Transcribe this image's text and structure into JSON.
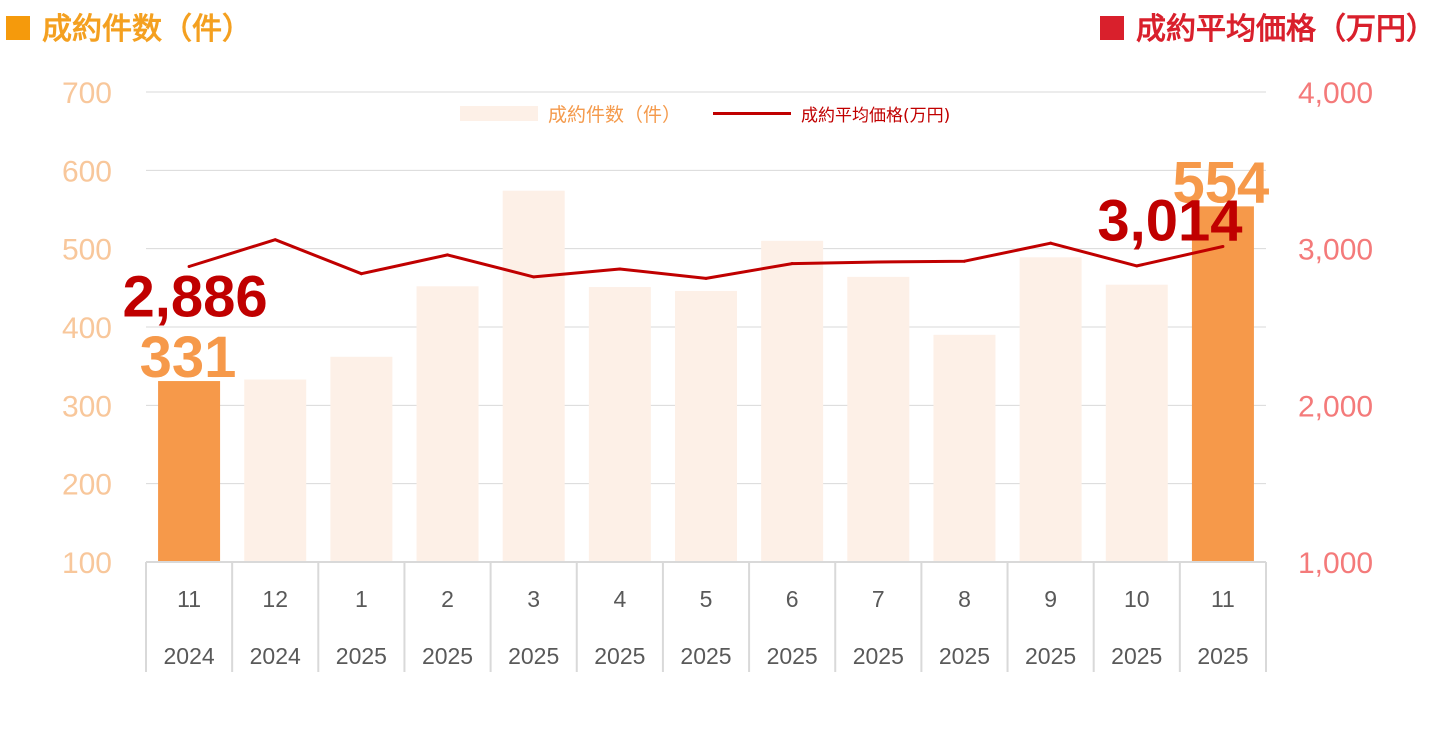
{
  "titles": {
    "left": "成約件数（件）",
    "right": "成約平均価格（万円）"
  },
  "legend": {
    "bar": "成約件数（件）",
    "line": "成約平均価格(万円)"
  },
  "colors": {
    "bar_faded": "#fdf0e7",
    "bar_highlight": "#f6994a",
    "line": "#c00000",
    "left_axis": "#f8c79b",
    "right_axis": "#f47a7a",
    "left_title": "#f4a020",
    "right_title": "#d9202c",
    "grid": "#d9d9d9"
  },
  "chart_data": {
    "type": "bar",
    "categories": [
      [
        "11",
        "2024"
      ],
      [
        "12",
        "2024"
      ],
      [
        "1",
        "2025"
      ],
      [
        "2",
        "2025"
      ],
      [
        "3",
        "2025"
      ],
      [
        "4",
        "2025"
      ],
      [
        "5",
        "2025"
      ],
      [
        "6",
        "2025"
      ],
      [
        "7",
        "2025"
      ],
      [
        "8",
        "2025"
      ],
      [
        "9",
        "2025"
      ],
      [
        "10",
        "2025"
      ],
      [
        "11",
        "2025"
      ]
    ],
    "series": [
      {
        "name": "成約件数（件）",
        "type": "bar",
        "axis": "left",
        "values": [
          331,
          333,
          362,
          452,
          574,
          451,
          446,
          510,
          464,
          390,
          489,
          454,
          554
        ],
        "highlight_indices": [
          0,
          12
        ]
      },
      {
        "name": "成約平均価格(万円)",
        "type": "line",
        "axis": "right",
        "values": [
          2886,
          3057,
          2840,
          2960,
          2820,
          2870,
          2810,
          2905,
          2915,
          2920,
          3035,
          2890,
          3014
        ]
      }
    ],
    "y_left": {
      "min": 100,
      "max": 700,
      "ticks": [
        "100",
        "200",
        "300",
        "400",
        "500",
        "600",
        "700"
      ]
    },
    "y_right": {
      "min": 1000,
      "max": 4000,
      "ticks": [
        "1,000",
        "2,000",
        "3,000",
        "4,000"
      ]
    },
    "annotations": [
      {
        "text": "331",
        "series": 0,
        "index": 0
      },
      {
        "text": "554",
        "series": 0,
        "index": 12
      },
      {
        "text": "2,886",
        "series": 1,
        "index": 0
      },
      {
        "text": "3,014",
        "series": 1,
        "index": 12
      }
    ],
    "grid": true,
    "legend_position": "top"
  }
}
